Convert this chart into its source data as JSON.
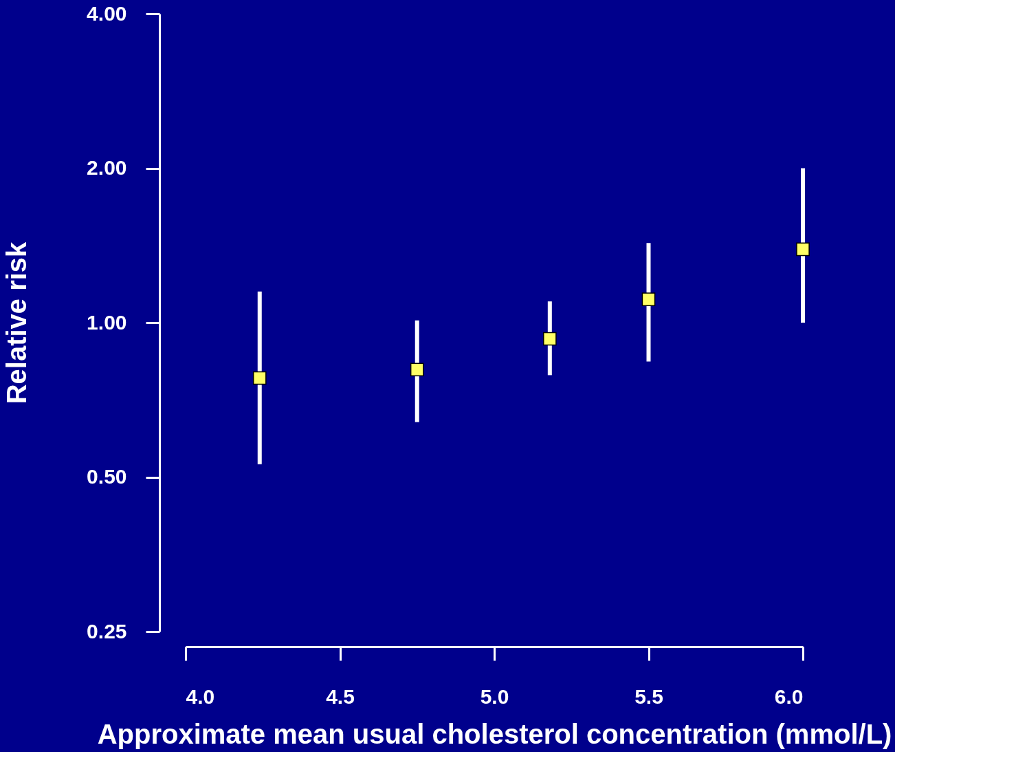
{
  "chart_data": {
    "type": "scatter",
    "xlabel": "Approximate mean usual cholesterol concentration (mmol/L)",
    "ylabel": "Relative risk",
    "x": [
      4.24,
      4.75,
      5.18,
      5.5,
      6.0
    ],
    "series": [
      {
        "color": "#ffff66",
        "values": [
          0.78,
          0.81,
          0.93,
          1.11,
          1.39
        ],
        "errors": [
          [
            0.53,
            1.15
          ],
          [
            0.64,
            1.01
          ],
          [
            0.79,
            1.1
          ],
          [
            0.84,
            1.43
          ],
          [
            1.0,
            2.0
          ]
        ]
      }
    ],
    "xlim": [
      4.0,
      6.0
    ],
    "xticks": [
      {
        "value": 4.0,
        "label": "4.0"
      },
      {
        "value": 4.5,
        "label": "4.5"
      },
      {
        "value": 5.0,
        "label": "5.0"
      },
      {
        "value": 5.5,
        "label": "5.5"
      },
      {
        "value": 6.0,
        "label": "6.0"
      }
    ],
    "ylim": [
      0.25,
      4.0
    ],
    "yticks": [
      {
        "value": 0.25,
        "label": "0.25"
      },
      {
        "value": 0.5,
        "label": "0.50"
      },
      {
        "value": 1.0,
        "label": "1.00"
      },
      {
        "value": 2.0,
        "label": "2.00"
      },
      {
        "value": 4.0,
        "label": "4.00"
      }
    ],
    "log": "y",
    "marker": "square"
  }
}
